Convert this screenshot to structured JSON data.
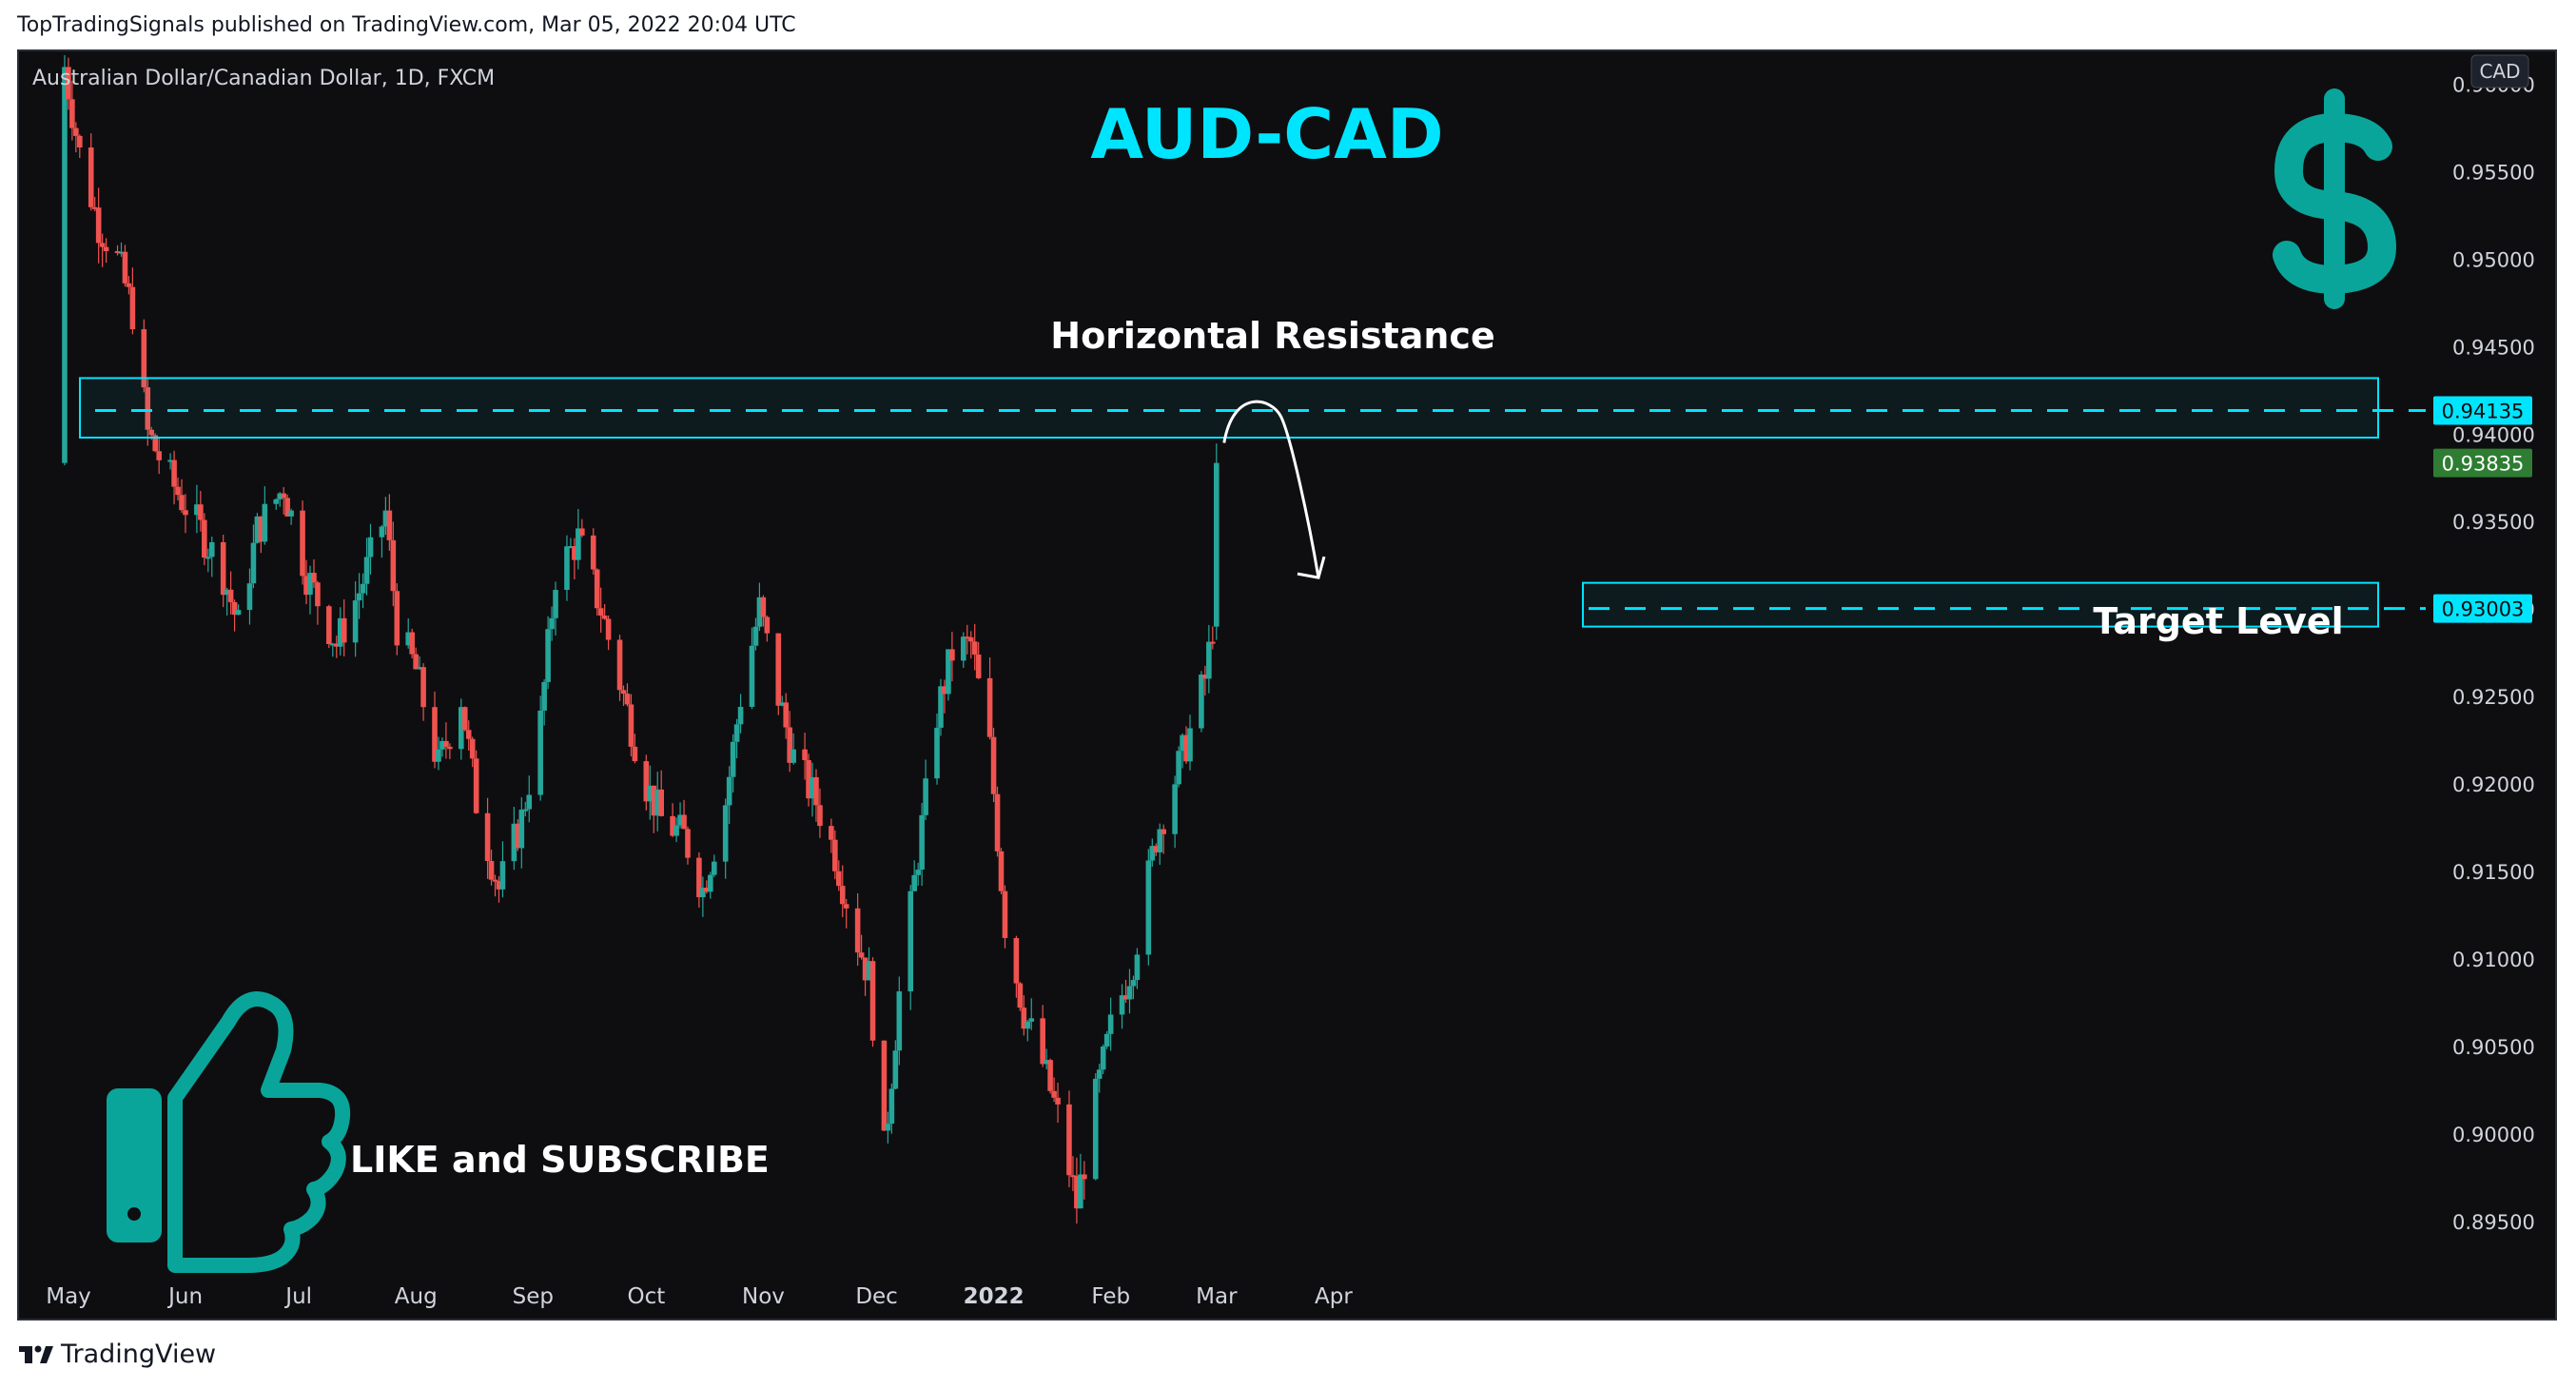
{
  "header": {
    "published_by": "TopTradingSignals published on TradingView.com, Mar 05, 2022 20:04 UTC"
  },
  "symbol": {
    "description": "Australian Dollar/Canadian Dollar, 1D, FXCM",
    "currency_badge": "CAD"
  },
  "annotations": {
    "title": "AUD-CAD",
    "resistance_label": "Horizontal Resistance",
    "target_label": "Target Level",
    "cta": "LIKE and SUBSCRIBE",
    "dollar_icon": "dollar-sign-icon",
    "thumb_icon": "thumbs-up-icon"
  },
  "footer": {
    "brand": "TradingView"
  },
  "colors": {
    "background": "#0e0e10",
    "up": "#26a69a",
    "down": "#ef5350",
    "accent": "#00e5ff",
    "teal_icon": "#0aa59a",
    "price_tag_green": "#2e7d32"
  },
  "chart_data": {
    "type": "candlestick",
    "interval": "1D",
    "y_axis": {
      "ticks": [
        "0.96000",
        "0.95500",
        "0.95000",
        "0.94500",
        "0.94000",
        "0.93500",
        "0.93000",
        "0.92500",
        "0.92000",
        "0.91500",
        "0.91000",
        "0.90500",
        "0.90000",
        "0.89500"
      ],
      "range": [
        0.8925,
        0.961
      ],
      "position": "right"
    },
    "x_axis": {
      "labels": [
        "May",
        "Jun",
        "Jul",
        "Aug",
        "Sep",
        "Oct",
        "Nov",
        "Dec",
        "2022",
        "Feb",
        "Mar",
        "Apr"
      ]
    },
    "price_tags": {
      "resistance": "0.94135",
      "last": "0.93835",
      "target": "0.93003"
    },
    "levels": {
      "resistance": {
        "value": 0.94135,
        "zone": [
          0.9398,
          0.9432
        ]
      },
      "target": {
        "value": 0.93003,
        "zone": [
          0.929,
          0.9315
        ]
      }
    },
    "price_path": [
      [
        "2021-05-03",
        0.961
      ],
      [
        "2021-05-07",
        0.956
      ],
      [
        "2021-05-12",
        0.952
      ],
      [
        "2021-05-17",
        0.95
      ],
      [
        "2021-05-21",
        0.947
      ],
      [
        "2021-05-25",
        0.94
      ],
      [
        "2021-06-01",
        0.937
      ],
      [
        "2021-06-08",
        0.9345
      ],
      [
        "2021-06-14",
        0.932
      ],
      [
        "2021-06-18",
        0.929
      ],
      [
        "2021-06-23",
        0.9345
      ],
      [
        "2021-06-30",
        0.937
      ],
      [
        "2021-07-06",
        0.932
      ],
      [
        "2021-07-09",
        0.9305
      ],
      [
        "2021-07-14",
        0.928
      ],
      [
        "2021-07-20",
        0.931
      ],
      [
        "2021-07-27",
        0.9355
      ],
      [
        "2021-07-30",
        0.929
      ],
      [
        "2021-08-04",
        0.9265
      ],
      [
        "2021-08-10",
        0.921
      ],
      [
        "2021-08-16",
        0.925
      ],
      [
        "2021-08-20",
        0.919
      ],
      [
        "2021-08-26",
        0.914
      ],
      [
        "2021-09-01",
        0.918
      ],
      [
        "2021-09-06",
        0.9235
      ],
      [
        "2021-09-10",
        0.932
      ],
      [
        "2021-09-16",
        0.934
      ],
      [
        "2021-09-22",
        0.93
      ],
      [
        "2021-09-28",
        0.925
      ],
      [
        "2021-10-04",
        0.92
      ],
      [
        "2021-10-08",
        0.918
      ],
      [
        "2021-10-14",
        0.917
      ],
      [
        "2021-10-19",
        0.914
      ],
      [
        "2021-10-25",
        0.919
      ],
      [
        "2021-10-29",
        0.925
      ],
      [
        "2021-11-03",
        0.93
      ],
      [
        "2021-11-08",
        0.925
      ],
      [
        "2021-11-12",
        0.9215
      ],
      [
        "2021-11-18",
        0.919
      ],
      [
        "2021-11-23",
        0.916
      ],
      [
        "2021-11-29",
        0.911
      ],
      [
        "2021-12-02",
        0.909
      ],
      [
        "2021-12-06",
        0.899
      ],
      [
        "2021-12-10",
        0.908
      ],
      [
        "2021-12-15",
        0.916
      ],
      [
        "2021-12-20",
        0.924
      ],
      [
        "2021-12-24",
        0.9275
      ],
      [
        "2021-12-29",
        0.928
      ],
      [
        "2022-01-03",
        0.922
      ],
      [
        "2022-01-07",
        0.912
      ],
      [
        "2022-01-12",
        0.907
      ],
      [
        "2022-01-17",
        0.904
      ],
      [
        "2022-01-21",
        0.901
      ],
      [
        "2022-01-26",
        0.896
      ],
      [
        "2022-01-31",
        0.902
      ],
      [
        "2022-02-04",
        0.906
      ],
      [
        "2022-02-10",
        0.91
      ],
      [
        "2022-02-16",
        0.917
      ],
      [
        "2022-02-22",
        0.921
      ],
      [
        "2022-02-25",
        0.923
      ],
      [
        "2022-03-01",
        0.926
      ],
      [
        "2022-03-03",
        0.929
      ],
      [
        "2022-03-04",
        0.93835
      ]
    ],
    "projection": {
      "from": [
        "2022-03-04",
        0.9395
      ],
      "peak": [
        "2022-03-11",
        0.941
      ],
      "to": [
        "2022-03-31",
        0.9318
      ]
    }
  }
}
